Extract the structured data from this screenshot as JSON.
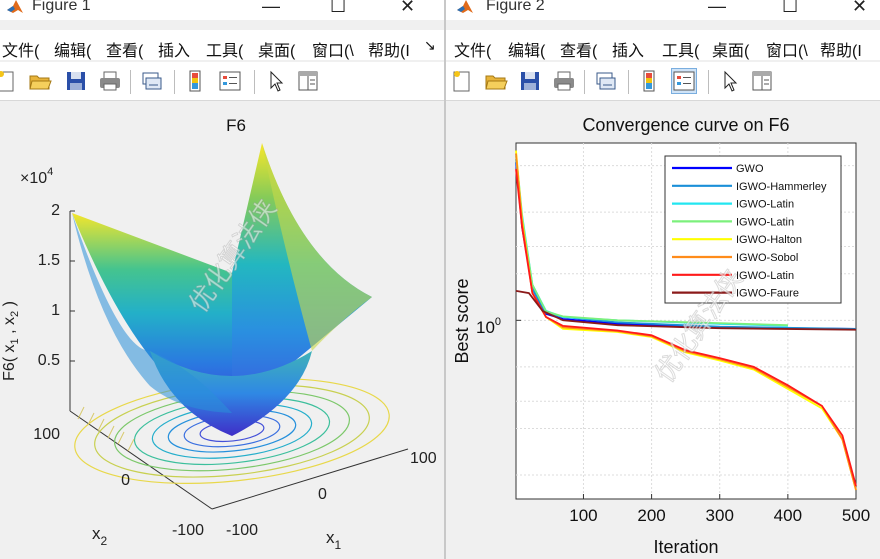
{
  "figure1": {
    "title": "Figure 1",
    "menu": [
      "文件(",
      "编辑(",
      "查看(",
      "插入",
      "工具(",
      "桌面(",
      "窗口(\\",
      "帮助(I"
    ],
    "overflow_arrow": "↘",
    "axes_title": "F6",
    "z_exponent": "4",
    "zlabel": "F6( x",
    "xlabel": "x",
    "ylabel": "x",
    "sub1": "1",
    "sub2": "2",
    "z_ticks": [
      "2",
      "1.5",
      "1",
      "0.5"
    ],
    "y_ticks": [
      "100",
      "0",
      "-100"
    ],
    "x_ticks": [
      "-100",
      "0",
      "100"
    ],
    "watermark": "优化算法侠"
  },
  "figure2": {
    "title": "Figure 2",
    "menu": [
      "文件(",
      "编辑(",
      "查看(",
      "插入",
      "工具(",
      "桌面(",
      "窗口(\\",
      "帮助(I"
    ],
    "watermark": "优化算法侠"
  },
  "window_controls": {
    "minimize": "—",
    "maximize": "☐",
    "close": "✕"
  },
  "toolbar_icons": [
    "new-figure-icon",
    "open-file-icon",
    "save-icon",
    "print-icon",
    "link-plot-icon",
    "colorbar-icon",
    "legend-icon",
    "pointer-icon",
    "property-inspector-icon"
  ],
  "colors": {
    "GWO": "#0000ff",
    "IGWO-Hammerley": "#1a8fd8",
    "IGWO-Latin-1": "#22e6f0",
    "IGWO-Latin-2": "#7cf07c",
    "IGWO-Halton": "#ffff00",
    "IGWO-Sobol": "#ff8c1a",
    "IGWO-Latin-3": "#ff1a1a",
    "IGWO-Faure": "#8b1a1a"
  },
  "chart_data": {
    "type": "line",
    "title": "Convergence curve on F6",
    "xlabel": "Iteration",
    "ylabel": "Best score",
    "x_ticks": [
      "100",
      "200",
      "300",
      "400",
      "500"
    ],
    "y_tick_label": "10",
    "y_tick_exp": "0",
    "y_scale": "log",
    "xlim": [
      1,
      500
    ],
    "grid": true,
    "legend_position": "top-right",
    "series": [
      {
        "name": "GWO",
        "x": [
          1,
          10,
          25,
          45,
          70,
          150,
          300,
          500
        ],
        "y": [
          10.5,
          4.0,
          1.6,
          1.1,
          1.02,
          0.95,
          0.9,
          0.88
        ]
      },
      {
        "name": "IGWO-Hammerley",
        "x": [
          1,
          10,
          25,
          45,
          70,
          150,
          300,
          500
        ],
        "y": [
          11.0,
          4.5,
          1.6,
          1.12,
          1.05,
          0.97,
          0.91,
          0.88
        ]
      },
      {
        "name": "IGWO-Latin",
        "x": [
          1,
          10,
          25,
          45,
          70,
          150,
          300,
          400
        ],
        "y": [
          12.0,
          4.8,
          1.7,
          1.15,
          1.05,
          1.0,
          0.95,
          0.92
        ]
      },
      {
        "name": "IGWO-Latin",
        "x": [
          1,
          10,
          25,
          45,
          70,
          150,
          300,
          400
        ],
        "y": [
          11.5,
          4.6,
          1.7,
          1.14,
          1.06,
          1.0,
          0.96,
          0.93
        ]
      },
      {
        "name": "IGWO-Halton",
        "x": [
          1,
          10,
          25,
          45,
          70,
          150,
          200,
          250,
          300,
          350,
          400,
          450,
          480,
          500
        ],
        "y": [
          12.5,
          4.5,
          1.5,
          1.05,
          0.88,
          0.84,
          0.78,
          0.62,
          0.55,
          0.48,
          0.36,
          0.27,
          0.17,
          0.08
        ]
      },
      {
        "name": "IGWO-Sobol",
        "x": [
          1,
          10,
          25,
          45,
          70,
          150,
          200,
          250,
          300,
          350,
          400,
          450,
          480,
          500
        ],
        "y": [
          12.0,
          4.3,
          1.5,
          1.05,
          0.9,
          0.85,
          0.79,
          0.63,
          0.56,
          0.49,
          0.37,
          0.28,
          0.17,
          0.08
        ]
      },
      {
        "name": "IGWO-Latin",
        "x": [
          1,
          10,
          25,
          45,
          70,
          150,
          200,
          250,
          300,
          350,
          400,
          450,
          480,
          500
        ],
        "y": [
          9.5,
          4.0,
          1.5,
          1.05,
          0.92,
          0.86,
          0.8,
          0.64,
          0.57,
          0.5,
          0.38,
          0.28,
          0.18,
          0.085
        ]
      },
      {
        "name": "IGWO-Faure",
        "x": [
          1,
          20,
          40,
          70,
          150,
          300,
          500
        ],
        "y": [
          1.55,
          1.5,
          1.15,
          1.0,
          0.93,
          0.89,
          0.87
        ]
      }
    ]
  }
}
